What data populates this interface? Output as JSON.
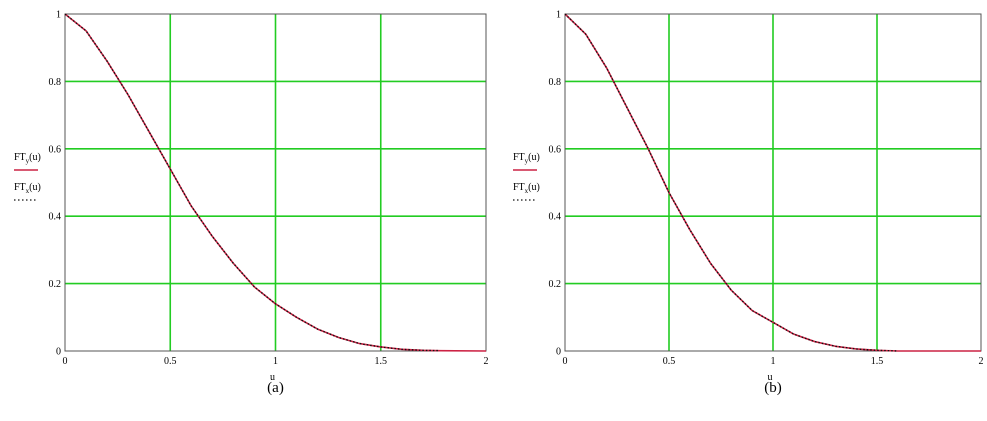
{
  "chart_data": [
    {
      "type": "line",
      "caption": "(a)",
      "xlabel": "u",
      "ylabel_series": [
        {
          "name": "FT",
          "sub": "y",
          "arg": "(u)"
        },
        {
          "name": "FT",
          "sub": "x",
          "arg": "(u)"
        }
      ],
      "xlim": [
        0,
        2
      ],
      "ylim": [
        0,
        1
      ],
      "xticks": [
        0,
        0.5,
        1,
        1.5,
        2
      ],
      "xtick_labels": [
        "0",
        "0.5",
        "1",
        "1.5",
        "2"
      ],
      "yticks": [
        0,
        0.2,
        0.4,
        0.6,
        0.8,
        1
      ],
      "ytick_labels": [
        "0",
        "0.2",
        "0.4",
        "0.6",
        "0.8",
        "1"
      ],
      "grid": true,
      "colors": {
        "grid": "#22cc22",
        "series_y": "#cc2244",
        "series_x": "#111111"
      },
      "series": [
        {
          "key": "FTy",
          "style": "solid",
          "x": [
            0,
            0.1,
            0.2,
            0.3,
            0.4,
            0.5,
            0.6,
            0.7,
            0.8,
            0.9,
            1.0,
            1.1,
            1.2,
            1.3,
            1.4,
            1.5,
            1.6,
            1.7,
            1.78,
            2.0
          ],
          "y": [
            1.0,
            0.95,
            0.86,
            0.76,
            0.65,
            0.54,
            0.43,
            0.34,
            0.26,
            0.19,
            0.14,
            0.1,
            0.065,
            0.04,
            0.022,
            0.012,
            0.005,
            0.002,
            0.001,
            0.0
          ]
        },
        {
          "key": "FTx",
          "style": "dotted",
          "x": [
            0,
            0.1,
            0.2,
            0.3,
            0.4,
            0.5,
            0.6,
            0.7,
            0.8,
            0.9,
            1.0,
            1.1,
            1.2,
            1.3,
            1.4,
            1.5,
            1.6,
            1.7,
            1.78
          ],
          "y": [
            1.0,
            0.95,
            0.86,
            0.76,
            0.65,
            0.54,
            0.43,
            0.34,
            0.26,
            0.19,
            0.14,
            0.1,
            0.065,
            0.04,
            0.022,
            0.012,
            0.005,
            0.002,
            0.001
          ]
        }
      ]
    },
    {
      "type": "line",
      "caption": "(b)",
      "xlabel": "u",
      "ylabel_series": [
        {
          "name": "FT",
          "sub": "y",
          "arg": "(u)"
        },
        {
          "name": "FT",
          "sub": "x",
          "arg": "(u)"
        }
      ],
      "xlim": [
        0,
        2
      ],
      "ylim": [
        0,
        1
      ],
      "xticks": [
        0,
        0.5,
        1,
        1.5,
        2
      ],
      "xtick_labels": [
        "0",
        "0.5",
        "1",
        "1.5",
        "2"
      ],
      "yticks": [
        0,
        0.2,
        0.4,
        0.6,
        0.8,
        1
      ],
      "ytick_labels": [
        "0",
        "0.2",
        "0.4",
        "0.6",
        "0.8",
        "1"
      ],
      "grid": true,
      "colors": {
        "grid": "#22cc22",
        "series_y": "#cc2244",
        "series_x": "#111111"
      },
      "series": [
        {
          "key": "FTy",
          "style": "solid",
          "x": [
            0,
            0.1,
            0.2,
            0.3,
            0.4,
            0.5,
            0.6,
            0.7,
            0.8,
            0.9,
            1.0,
            1.1,
            1.2,
            1.3,
            1.4,
            1.5,
            1.6,
            2.0
          ],
          "y": [
            1.0,
            0.94,
            0.84,
            0.72,
            0.6,
            0.47,
            0.36,
            0.26,
            0.18,
            0.12,
            0.085,
            0.05,
            0.028,
            0.014,
            0.006,
            0.002,
            0.0,
            0.0
          ]
        },
        {
          "key": "FTx",
          "style": "dotted",
          "x": [
            0,
            0.1,
            0.2,
            0.3,
            0.4,
            0.5,
            0.6,
            0.7,
            0.8,
            0.9,
            1.0,
            1.1,
            1.2,
            1.3,
            1.4,
            1.5,
            1.6
          ],
          "y": [
            1.0,
            0.94,
            0.84,
            0.72,
            0.6,
            0.47,
            0.36,
            0.26,
            0.18,
            0.12,
            0.085,
            0.05,
            0.028,
            0.014,
            0.006,
            0.002,
            0.0
          ]
        }
      ]
    }
  ]
}
